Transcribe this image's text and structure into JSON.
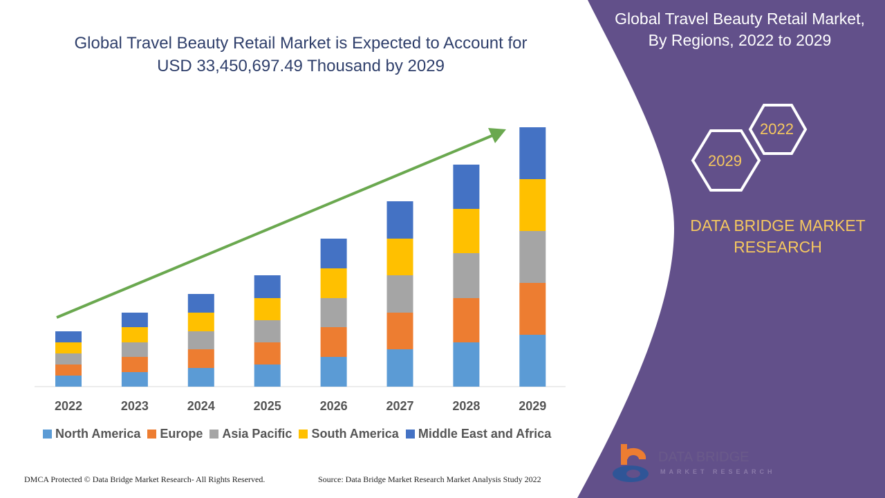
{
  "title_line1": "Global Travel Beauty Retail Market is Expected to Account for",
  "title_line2": "USD 33,450,697.49 Thousand by 2029",
  "side_title_line1": "Global Travel Beauty Retail Market,",
  "side_title_line2": "By Regions, 2022 to 2029",
  "hex_labels": [
    "2022",
    "2029"
  ],
  "brand_line1": "DATA BRIDGE MARKET",
  "brand_line2": "RESEARCH",
  "logo_text": "DATA BRIDGE",
  "logo_sub": "MARKET RESEARCH",
  "footer_left": "DMCA Protected © Data Bridge Market Research- All Rights Reserved.",
  "footer_right": "Source: Data Bridge Market Research Market Analysis Study 2022",
  "colors": {
    "panel": "#62508a",
    "accent": "#f6c85f",
    "arrow": "#6aa84f"
  },
  "chart_data": {
    "type": "bar",
    "stacked": true,
    "categories": [
      "2022",
      "2023",
      "2024",
      "2025",
      "2026",
      "2027",
      "2028",
      "2029"
    ],
    "series": [
      {
        "name": "North America",
        "color": "#5b9bd5",
        "values": [
          16,
          21,
          27,
          32,
          43,
          54,
          64,
          75
        ]
      },
      {
        "name": "Europe",
        "color": "#ed7d31",
        "values": [
          16,
          22,
          27,
          32,
          43,
          53,
          64,
          75
        ]
      },
      {
        "name": "Asia Pacific",
        "color": "#a5a5a5",
        "values": [
          16,
          21,
          26,
          32,
          42,
          54,
          65,
          75
        ]
      },
      {
        "name": "South America",
        "color": "#ffc000",
        "values": [
          16,
          22,
          27,
          32,
          43,
          53,
          64,
          75
        ]
      },
      {
        "name": "Middle East and Africa",
        "color": "#4472c4",
        "values": [
          16,
          21,
          27,
          33,
          43,
          54,
          64,
          75
        ]
      }
    ],
    "y_axis_shown": false,
    "grid": false,
    "legend": "bottom",
    "trend_arrow": true
  }
}
